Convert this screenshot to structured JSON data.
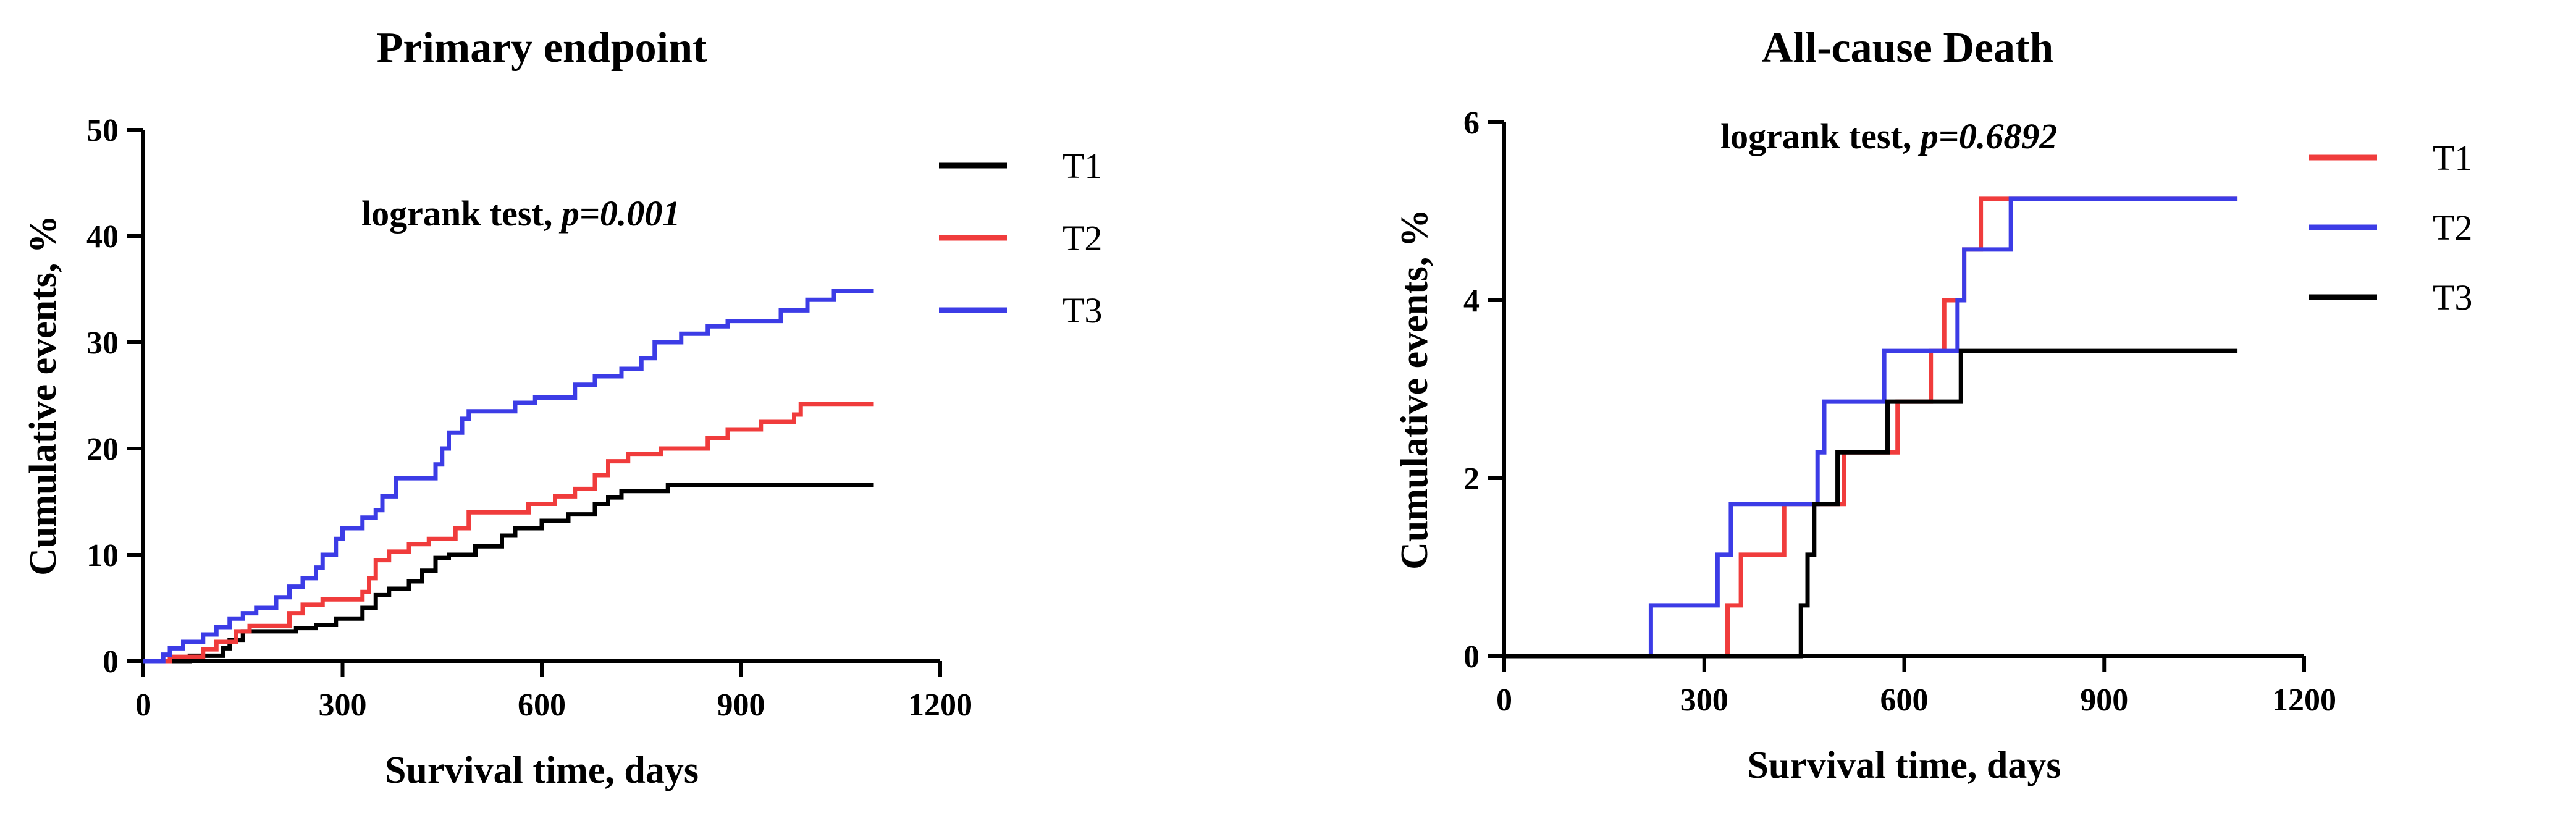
{
  "chart_data": [
    {
      "type": "line",
      "step": true,
      "title": "Primary endpoint",
      "xlabel": "Survival time, days",
      "ylabel": "Cumulative events, %",
      "xlim": [
        0,
        1200
      ],
      "ylim": [
        0,
        50
      ],
      "xticks": [
        0,
        300,
        600,
        900,
        1200
      ],
      "yticks": [
        0,
        10,
        20,
        30,
        40,
        50
      ],
      "annotation": {
        "text": "logrank test, ",
        "italic": "p=0.001"
      },
      "legend_position": "right",
      "series": [
        {
          "name": "T1",
          "color": "#000000",
          "x_end": 1100,
          "points": [
            [
              0,
              0
            ],
            [
              70,
              0.5
            ],
            [
              110,
              0.5
            ],
            [
              120,
              1.2
            ],
            [
              130,
              2.0
            ],
            [
              150,
              2.8
            ],
            [
              230,
              3.1
            ],
            [
              260,
              3.4
            ],
            [
              290,
              4.0
            ],
            [
              330,
              5.0
            ],
            [
              350,
              6.2
            ],
            [
              370,
              6.8
            ],
            [
              400,
              7.5
            ],
            [
              420,
              8.5
            ],
            [
              440,
              9.7
            ],
            [
              460,
              10.0
            ],
            [
              500,
              10.8
            ],
            [
              540,
              11.8
            ],
            [
              560,
              12.5
            ],
            [
              600,
              13.2
            ],
            [
              640,
              13.8
            ],
            [
              680,
              14.8
            ],
            [
              700,
              15.4
            ],
            [
              720,
              16.0
            ],
            [
              790,
              16.6
            ]
          ]
        },
        {
          "name": "T2",
          "color": "#f03c3c",
          "x_end": 1100,
          "points": [
            [
              0,
              0
            ],
            [
              40,
              0.4
            ],
            [
              90,
              1.1
            ],
            [
              110,
              1.8
            ],
            [
              140,
              2.8
            ],
            [
              160,
              3.3
            ],
            [
              220,
              4.5
            ],
            [
              240,
              5.3
            ],
            [
              270,
              5.8
            ],
            [
              330,
              6.5
            ],
            [
              340,
              7.8
            ],
            [
              350,
              9.5
            ],
            [
              370,
              10.3
            ],
            [
              400,
              11.0
            ],
            [
              430,
              11.5
            ],
            [
              470,
              12.5
            ],
            [
              490,
              14.0
            ],
            [
              580,
              14.8
            ],
            [
              620,
              15.5
            ],
            [
              650,
              16.2
            ],
            [
              680,
              17.5
            ],
            [
              700,
              18.8
            ],
            [
              730,
              19.5
            ],
            [
              780,
              20.0
            ],
            [
              850,
              21.0
            ],
            [
              880,
              21.8
            ],
            [
              930,
              22.5
            ],
            [
              980,
              23.2
            ],
            [
              990,
              24.2
            ]
          ]
        },
        {
          "name": "T3",
          "color": "#3c3ce6",
          "x_end": 1100,
          "points": [
            [
              0,
              0
            ],
            [
              30,
              0.6
            ],
            [
              40,
              1.2
            ],
            [
              60,
              1.8
            ],
            [
              90,
              2.5
            ],
            [
              110,
              3.2
            ],
            [
              130,
              4.0
            ],
            [
              150,
              4.5
            ],
            [
              170,
              5.0
            ],
            [
              200,
              6.0
            ],
            [
              220,
              7.0
            ],
            [
              240,
              7.8
            ],
            [
              260,
              8.8
            ],
            [
              270,
              10.0
            ],
            [
              290,
              11.5
            ],
            [
              300,
              12.5
            ],
            [
              330,
              13.5
            ],
            [
              350,
              14.2
            ],
            [
              360,
              15.5
            ],
            [
              380,
              17.2
            ],
            [
              440,
              18.5
            ],
            [
              450,
              20.0
            ],
            [
              460,
              21.5
            ],
            [
              480,
              22.8
            ],
            [
              490,
              23.5
            ],
            [
              560,
              24.3
            ],
            [
              590,
              24.8
            ],
            [
              650,
              26.0
            ],
            [
              680,
              26.8
            ],
            [
              720,
              27.5
            ],
            [
              750,
              28.5
            ],
            [
              770,
              30.0
            ],
            [
              810,
              30.8
            ],
            [
              850,
              31.5
            ],
            [
              880,
              32.0
            ],
            [
              960,
              33.0
            ],
            [
              1000,
              34.0
            ],
            [
              1040,
              34.8
            ]
          ]
        }
      ]
    },
    {
      "type": "line",
      "step": true,
      "title": "All-cause Death",
      "xlabel": "Survival time, days",
      "ylabel": "Cumulative events, %",
      "xlim": [
        0,
        1200
      ],
      "ylim": [
        0,
        6
      ],
      "xticks": [
        0,
        300,
        600,
        900,
        1200
      ],
      "yticks": [
        0,
        2,
        4,
        6
      ],
      "annotation": {
        "text": "logrank test, ",
        "italic": "p=0.6892"
      },
      "legend_position": "right",
      "series": [
        {
          "name": "T1",
          "color": "#f03c3c",
          "x_end": 1100,
          "points": [
            [
              0,
              0
            ],
            [
              335,
              0.57
            ],
            [
              355,
              1.14
            ],
            [
              420,
              1.71
            ],
            [
              510,
              2.29
            ],
            [
              590,
              2.86
            ],
            [
              640,
              3.43
            ],
            [
              660,
              4.0
            ],
            [
              690,
              4.57
            ],
            [
              715,
              5.14
            ]
          ]
        },
        {
          "name": "T2",
          "color": "#3c3ce6",
          "x_end": 1100,
          "points": [
            [
              0,
              0
            ],
            [
              220,
              0.57
            ],
            [
              320,
              1.14
            ],
            [
              340,
              1.71
            ],
            [
              470,
              2.29
            ],
            [
              480,
              2.86
            ],
            [
              570,
              3.43
            ],
            [
              680,
              4.0
            ],
            [
              690,
              4.57
            ],
            [
              760,
              5.14
            ]
          ]
        },
        {
          "name": "T3",
          "color": "#000000",
          "x_end": 1100,
          "points": [
            [
              0,
              0
            ],
            [
              445,
              0.57
            ],
            [
              455,
              1.14
            ],
            [
              465,
              1.71
            ],
            [
              500,
              2.29
            ],
            [
              575,
              2.86
            ],
            [
              685,
              3.43
            ]
          ]
        }
      ]
    }
  ]
}
